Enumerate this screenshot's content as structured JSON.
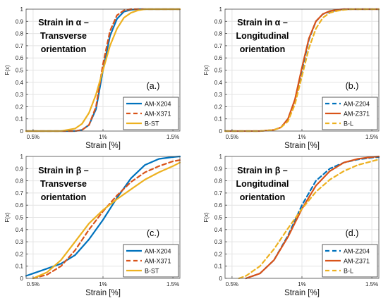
{
  "colors": {
    "blue": "#0072BD",
    "red": "#D95319",
    "yellow": "#EDB120",
    "grid": "#e4e4e4",
    "axis": "#4d4d4d"
  },
  "chart_data": [
    {
      "type": "line",
      "panel_label": "(a.)",
      "annotation": [
        "Strain in α –",
        "Transverse",
        "orientation"
      ],
      "ylabel": "F(x)",
      "xlabel": "Strain [%]",
      "x_ticks": [
        "0.5%",
        "1%",
        "1.5%"
      ],
      "y_ticks": [
        "0",
        "0.1",
        "0.2",
        "0.3",
        "0.4",
        "0.5",
        "0.6",
        "0.7",
        "0.8",
        "0.9",
        "1"
      ],
      "xlim": [
        0.45,
        1.55
      ],
      "ylim": [
        0,
        1
      ],
      "grid": true,
      "legend_position": "bottom-right",
      "series": [
        {
          "name": "AM-X204",
          "color": "#0072BD",
          "dash": "solid",
          "x": [
            0.45,
            0.8,
            0.85,
            0.9,
            0.95,
            1.0,
            1.05,
            1.1,
            1.15,
            1.2,
            1.25,
            1.3,
            1.55
          ],
          "y": [
            0,
            0.0,
            0.01,
            0.05,
            0.18,
            0.5,
            0.78,
            0.92,
            0.98,
            0.995,
            1.0,
            1.0,
            1.0
          ]
        },
        {
          "name": "AM-X371",
          "color": "#D95319",
          "dash": "dashed",
          "x": [
            0.45,
            0.8,
            0.85,
            0.9,
            0.95,
            1.0,
            1.05,
            1.1,
            1.15,
            1.2,
            1.25,
            1.55
          ],
          "y": [
            0,
            0.0,
            0.01,
            0.05,
            0.2,
            0.55,
            0.82,
            0.95,
            0.99,
            1.0,
            1.0,
            1.0
          ]
        },
        {
          "name": "B-ST",
          "color": "#EDB120",
          "dash": "solid",
          "x": [
            0.45,
            0.7,
            0.8,
            0.85,
            0.9,
            0.95,
            1.0,
            1.05,
            1.1,
            1.15,
            1.2,
            1.25,
            1.3,
            1.35,
            1.55
          ],
          "y": [
            0,
            0.0,
            0.02,
            0.06,
            0.15,
            0.3,
            0.5,
            0.7,
            0.84,
            0.93,
            0.97,
            0.99,
            1.0,
            1.0,
            1.0
          ]
        }
      ]
    },
    {
      "type": "line",
      "panel_label": "(b.)",
      "annotation": [
        "Strain in α –",
        "Longitudinal",
        "orientation"
      ],
      "ylabel": "F(x)",
      "xlabel": "Strain [%]",
      "x_ticks": [
        "0.5%",
        "1%",
        "1.5%"
      ],
      "y_ticks": [
        "0",
        "0.1",
        "0.2",
        "0.3",
        "0.4",
        "0.5",
        "0.6",
        "0.7",
        "0.8",
        "0.9",
        "1"
      ],
      "xlim": [
        0.45,
        1.55
      ],
      "ylim": [
        0,
        1
      ],
      "grid": true,
      "legend_position": "bottom-right",
      "series": [
        {
          "name": "AM-Z204",
          "color": "#0072BD",
          "dash": "dashed",
          "x": [
            0.45,
            0.7,
            0.8,
            0.85,
            0.9,
            0.95,
            1.0,
            1.05,
            1.1,
            1.15,
            1.2,
            1.25,
            1.3,
            1.4,
            1.55
          ],
          "y": [
            0,
            0.0,
            0.01,
            0.03,
            0.1,
            0.25,
            0.5,
            0.75,
            0.9,
            0.96,
            0.98,
            0.99,
            1.0,
            1.0,
            1.0
          ]
        },
        {
          "name": "AM-Z371",
          "color": "#D95319",
          "dash": "solid",
          "x": [
            0.45,
            0.7,
            0.8,
            0.85,
            0.9,
            0.95,
            1.0,
            1.05,
            1.1,
            1.15,
            1.2,
            1.25,
            1.3,
            1.4,
            1.55
          ],
          "y": [
            0,
            0.0,
            0.01,
            0.03,
            0.1,
            0.26,
            0.52,
            0.76,
            0.9,
            0.96,
            0.985,
            0.995,
            1.0,
            1.0,
            1.0
          ]
        },
        {
          "name": "B-L",
          "color": "#EDB120",
          "dash": "dashed",
          "x": [
            0.45,
            0.7,
            0.8,
            0.85,
            0.9,
            0.95,
            1.0,
            1.05,
            1.1,
            1.15,
            1.2,
            1.25,
            1.3,
            1.35,
            1.45,
            1.55
          ],
          "y": [
            0,
            0.0,
            0.01,
            0.03,
            0.08,
            0.22,
            0.45,
            0.68,
            0.84,
            0.93,
            0.97,
            0.985,
            0.995,
            1.0,
            1.0,
            1.0
          ]
        }
      ]
    },
    {
      "type": "line",
      "panel_label": "(c.)",
      "annotation": [
        "Strain in β –",
        "Transverse",
        "orientation"
      ],
      "ylabel": "F(x)",
      "xlabel": "Strain [%]",
      "x_ticks": [
        "0.5%",
        "1%",
        "1.5%"
      ],
      "y_ticks": [
        "0",
        "0.1",
        "0.2",
        "0.3",
        "0.4",
        "0.5",
        "0.6",
        "0.7",
        "0.8",
        "0.9",
        "1"
      ],
      "xlim": [
        0.45,
        1.55
      ],
      "ylim": [
        0,
        1
      ],
      "grid": true,
      "legend_position": "bottom-right",
      "series": [
        {
          "name": "AM-X204",
          "color": "#0072BD",
          "dash": "solid",
          "x": [
            0.45,
            0.5,
            0.6,
            0.7,
            0.8,
            0.9,
            1.0,
            1.1,
            1.2,
            1.3,
            1.4,
            1.5,
            1.55
          ],
          "y": [
            0.02,
            0.04,
            0.08,
            0.12,
            0.19,
            0.32,
            0.48,
            0.66,
            0.82,
            0.93,
            0.98,
            0.995,
            1.0
          ]
        },
        {
          "name": "AM-X371",
          "color": "#D95319",
          "dash": "dashed",
          "x": [
            0.5,
            0.6,
            0.7,
            0.8,
            0.9,
            1.0,
            1.1,
            1.2,
            1.3,
            1.4,
            1.5,
            1.55
          ],
          "y": [
            0.0,
            0.03,
            0.1,
            0.23,
            0.4,
            0.55,
            0.68,
            0.79,
            0.87,
            0.92,
            0.96,
            0.97
          ]
        },
        {
          "name": "B-ST",
          "color": "#EDB120",
          "dash": "solid",
          "x": [
            0.5,
            0.6,
            0.7,
            0.8,
            0.9,
            1.0,
            1.1,
            1.2,
            1.3,
            1.4,
            1.5,
            1.55
          ],
          "y": [
            0.0,
            0.05,
            0.15,
            0.3,
            0.45,
            0.56,
            0.65,
            0.73,
            0.81,
            0.87,
            0.92,
            0.95
          ]
        }
      ]
    },
    {
      "type": "line",
      "panel_label": "(d.)",
      "annotation": [
        "Strain in β –",
        "Longitudinal",
        "orientation"
      ],
      "ylabel": "F(x)",
      "xlabel": "Strain [%]",
      "x_ticks": [
        "0.5%",
        "1%",
        "1.5%"
      ],
      "y_ticks": [
        "0",
        "0.1",
        "0.2",
        "0.3",
        "0.4",
        "0.5",
        "0.6",
        "0.7",
        "0.8",
        "0.9",
        "1"
      ],
      "xlim": [
        0.45,
        1.55
      ],
      "ylim": [
        0,
        1
      ],
      "grid": true,
      "legend_position": "bottom-right",
      "series": [
        {
          "name": "AM-Z204",
          "color": "#0072BD",
          "dash": "dashed",
          "x": [
            0.6,
            0.7,
            0.8,
            0.9,
            1.0,
            1.1,
            1.2,
            1.3,
            1.4,
            1.5,
            1.55
          ],
          "y": [
            0.0,
            0.04,
            0.15,
            0.35,
            0.6,
            0.8,
            0.9,
            0.95,
            0.975,
            0.99,
            0.995
          ]
        },
        {
          "name": "AM-Z371",
          "color": "#D95319",
          "dash": "solid",
          "x": [
            0.6,
            0.7,
            0.8,
            0.9,
            1.0,
            1.1,
            1.2,
            1.3,
            1.4,
            1.5,
            1.55
          ],
          "y": [
            0.0,
            0.04,
            0.15,
            0.34,
            0.57,
            0.76,
            0.88,
            0.95,
            0.98,
            0.995,
            1.0
          ]
        },
        {
          "name": "B-L",
          "color": "#EDB120",
          "dash": "dashed",
          "x": [
            0.55,
            0.6,
            0.7,
            0.8,
            0.9,
            1.0,
            1.1,
            1.2,
            1.3,
            1.4,
            1.5,
            1.55
          ],
          "y": [
            0.0,
            0.02,
            0.1,
            0.24,
            0.41,
            0.57,
            0.71,
            0.81,
            0.88,
            0.93,
            0.96,
            0.975
          ]
        }
      ]
    }
  ]
}
